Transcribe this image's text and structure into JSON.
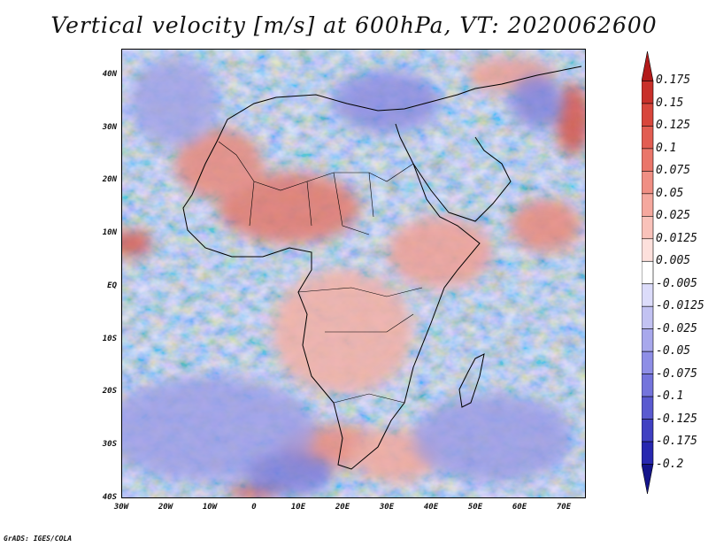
{
  "title": "Vertical velocity [m/s] at 600hPa, VT: 2020062600",
  "credit": "GrADS: IGES/COLA",
  "map": {
    "projection": "latlon",
    "lon_range": [
      -30,
      75
    ],
    "lat_range": [
      -40,
      45
    ],
    "field": "vertical velocity",
    "units": "m/s",
    "level": "600hPa",
    "valid_time": "2020062600",
    "overlays": [
      "coastlines",
      "country borders"
    ],
    "background_color": "#ffffff"
  },
  "lat_ticks": [
    {
      "value": 40,
      "label": "40N"
    },
    {
      "value": 30,
      "label": "30N"
    },
    {
      "value": 20,
      "label": "20N"
    },
    {
      "value": 10,
      "label": "10N"
    },
    {
      "value": 0,
      "label": "EQ"
    },
    {
      "value": -10,
      "label": "10S"
    },
    {
      "value": -20,
      "label": "20S"
    },
    {
      "value": -30,
      "label": "30S"
    },
    {
      "value": -40,
      "label": "40S"
    }
  ],
  "lon_ticks": [
    {
      "value": -30,
      "label": "30W"
    },
    {
      "value": -20,
      "label": "20W"
    },
    {
      "value": -10,
      "label": "10W"
    },
    {
      "value": 0,
      "label": "0"
    },
    {
      "value": 10,
      "label": "10E"
    },
    {
      "value": 20,
      "label": "20E"
    },
    {
      "value": 30,
      "label": "30E"
    },
    {
      "value": 40,
      "label": "40E"
    },
    {
      "value": 50,
      "label": "50E"
    },
    {
      "value": 60,
      "label": "60E"
    },
    {
      "value": 70,
      "label": "70E"
    }
  ],
  "colorbar": {
    "labels": [
      "0.175",
      "0.15",
      "0.125",
      "0.1",
      "0.075",
      "0.05",
      "0.025",
      "0.0125",
      "0.005",
      "-0.005",
      "-0.0125",
      "-0.025",
      "-0.05",
      "-0.075",
      "-0.1",
      "-0.125",
      "-0.175",
      "-0.2"
    ],
    "colors": [
      "#b21a1a",
      "#c8302a",
      "#d8463c",
      "#e25d52",
      "#ea766a",
      "#f08f84",
      "#f5a89e",
      "#f9c2ba",
      "#fde0dc",
      "#ffffff",
      "#dcdcfa",
      "#c2c2f2",
      "#a8a8ec",
      "#8e8ee6",
      "#7474dc",
      "#5a5ad0",
      "#4040c2",
      "#2828b0",
      "#14148a"
    ]
  }
}
